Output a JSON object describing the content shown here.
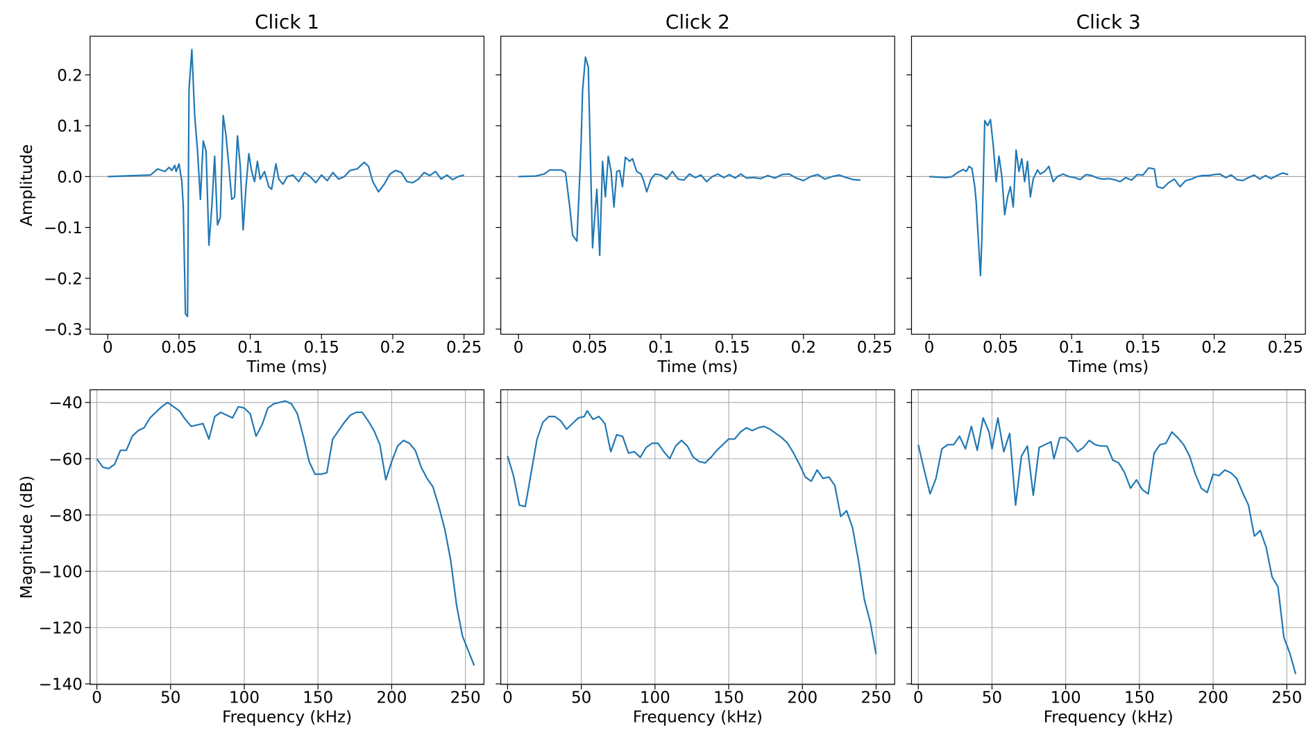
{
  "chart_data": [
    {
      "type": "line",
      "title": "Click 1",
      "xlabel": "Time (ms)",
      "ylabel": "Amplitude",
      "color": "#1f77b4",
      "grid": false,
      "hline": 0,
      "xlim": [
        -0.0124,
        0.264
      ],
      "ylim": [
        -0.31,
        0.276
      ],
      "xticks": [
        0,
        0.05,
        0.1,
        0.15,
        0.2,
        0.25
      ],
      "yticks": [
        {
          "value": -0.3,
          "label": "−0.3"
        },
        {
          "value": -0.2,
          "label": "−0.2"
        },
        {
          "value": -0.1,
          "label": "−0.1"
        },
        {
          "value": 0,
          "label": "0.0"
        },
        0.1,
        0.2
      ],
      "x": [
        0,
        0.03,
        0.035,
        0.04,
        0.043,
        0.045,
        0.047,
        0.048,
        0.05,
        0.052,
        0.053,
        0.0545,
        0.056,
        0.057,
        0.059,
        0.061,
        0.063,
        0.065,
        0.067,
        0.069,
        0.071,
        0.073,
        0.075,
        0.077,
        0.079,
        0.081,
        0.083,
        0.085,
        0.087,
        0.089,
        0.091,
        0.093,
        0.095,
        0.097,
        0.099,
        0.101,
        0.103,
        0.105,
        0.107,
        0.11,
        0.113,
        0.115,
        0.118,
        0.12,
        0.123,
        0.126,
        0.13,
        0.134,
        0.138,
        0.142,
        0.146,
        0.15,
        0.154,
        0.158,
        0.162,
        0.166,
        0.17,
        0.175,
        0.18,
        0.183,
        0.186,
        0.19,
        0.194,
        0.198,
        0.202,
        0.206,
        0.21,
        0.214,
        0.218,
        0.222,
        0.226,
        0.23,
        0.234,
        0.238,
        0.242,
        0.246,
        0.25
      ],
      "values": [
        0,
        0.003,
        0.015,
        0.01,
        0.018,
        0.012,
        0.022,
        0.01,
        0.025,
        -0.01,
        -0.06,
        -0.27,
        -0.275,
        0.17,
        0.25,
        0.12,
        0.05,
        -0.045,
        0.07,
        0.05,
        -0.135,
        -0.06,
        0.04,
        -0.095,
        -0.08,
        0.12,
        0.08,
        0.02,
        -0.045,
        -0.04,
        0.08,
        0.02,
        -0.105,
        -0.02,
        0.045,
        0.01,
        -0.01,
        0.03,
        -0.005,
        0.01,
        -0.02,
        -0.025,
        0.025,
        -0.005,
        -0.015,
        0,
        0.003,
        -0.01,
        0.008,
        0,
        -0.012,
        0.003,
        -0.008,
        0.008,
        -0.005,
        0,
        0.012,
        0.015,
        0.028,
        0.02,
        -0.01,
        -0.03,
        -0.015,
        0.005,
        0.012,
        0.008,
        -0.01,
        -0.012,
        -0.005,
        0.008,
        0.002,
        0.01,
        -0.005,
        0.003,
        -0.006,
        0,
        0.003
      ]
    },
    {
      "type": "line",
      "title": "Click 2",
      "xlabel": "Time (ms)",
      "color": "#1f77b4",
      "grid": false,
      "hline": 0,
      "xlim": [
        -0.0124,
        0.264
      ],
      "ylim": [
        -0.31,
        0.276
      ],
      "xticks": [
        0,
        0.05,
        0.1,
        0.15,
        0.2,
        0.25
      ],
      "yticks": [
        -0.3,
        -0.2,
        -0.1,
        0,
        0.1,
        0.2
      ],
      "x": [
        0,
        0.012,
        0.018,
        0.022,
        0.03,
        0.033,
        0.036,
        0.038,
        0.041,
        0.043,
        0.044,
        0.045,
        0.047,
        0.049,
        0.052,
        0.054,
        0.055,
        0.057,
        0.059,
        0.061,
        0.063,
        0.065,
        0.067,
        0.069,
        0.071,
        0.073,
        0.075,
        0.078,
        0.08,
        0.083,
        0.086,
        0.088,
        0.09,
        0.093,
        0.096,
        0.1,
        0.104,
        0.108,
        0.112,
        0.116,
        0.12,
        0.124,
        0.128,
        0.132,
        0.136,
        0.14,
        0.144,
        0.148,
        0.152,
        0.156,
        0.16,
        0.165,
        0.17,
        0.175,
        0.18,
        0.185,
        0.19,
        0.195,
        0.2,
        0.205,
        0.21,
        0.215,
        0.22,
        0.225,
        0.23,
        0.235,
        0.24
      ],
      "values": [
        0,
        0.001,
        0.005,
        0.013,
        0.013,
        0.008,
        -0.06,
        -0.115,
        -0.127,
        0,
        0.07,
        0.17,
        0.235,
        0.215,
        -0.14,
        -0.06,
        -0.025,
        -0.155,
        0.03,
        -0.04,
        0.04,
        0.01,
        -0.06,
        0.01,
        0.012,
        -0.02,
        0.038,
        0.03,
        0.035,
        0.01,
        0.005,
        -0.01,
        -0.03,
        -0.005,
        0.005,
        0.003,
        -0.005,
        0.01,
        -0.005,
        -0.007,
        0.005,
        -0.002,
        0.003,
        -0.01,
        0,
        0.005,
        -0.002,
        0.004,
        -0.003,
        0.005,
        -0.003,
        -0.002,
        -0.004,
        0.002,
        -0.003,
        0.004,
        0.005,
        -0.003,
        -0.008,
        0,
        0.004,
        -0.005,
        0,
        0.003,
        -0.002,
        -0.006,
        -0.007
      ]
    },
    {
      "type": "line",
      "title": "Click 3",
      "xlabel": "Time (ms)",
      "color": "#1f77b4",
      "grid": false,
      "hline": 0,
      "xlim": [
        -0.0124,
        0.264
      ],
      "ylim": [
        -0.31,
        0.276
      ],
      "xticks": [
        0,
        0.05,
        0.1,
        0.15,
        0.2,
        0.25
      ],
      "yticks": [
        -0.3,
        -0.2,
        -0.1,
        0,
        0.1,
        0.2
      ],
      "x": [
        0,
        0.012,
        0.016,
        0.02,
        0.024,
        0.026,
        0.028,
        0.03,
        0.032,
        0.033,
        0.034,
        0.036,
        0.037,
        0.039,
        0.041,
        0.043,
        0.045,
        0.047,
        0.049,
        0.051,
        0.053,
        0.055,
        0.057,
        0.059,
        0.061,
        0.063,
        0.065,
        0.067,
        0.069,
        0.071,
        0.073,
        0.076,
        0.078,
        0.081,
        0.084,
        0.087,
        0.09,
        0.094,
        0.098,
        0.102,
        0.106,
        0.11,
        0.114,
        0.118,
        0.122,
        0.126,
        0.13,
        0.134,
        0.138,
        0.142,
        0.146,
        0.15,
        0.154,
        0.158,
        0.16,
        0.164,
        0.168,
        0.172,
        0.176,
        0.18,
        0.184,
        0.188,
        0.192,
        0.196,
        0.2,
        0.204,
        0.208,
        0.212,
        0.216,
        0.22,
        0.224,
        0.228,
        0.232,
        0.236,
        0.24,
        0.244,
        0.248,
        0.252
      ],
      "values": [
        0,
        -0.002,
        0,
        0.008,
        0.014,
        0.01,
        0.02,
        0.016,
        -0.02,
        -0.05,
        -0.1,
        -0.195,
        -0.12,
        0.11,
        0.1,
        0.112,
        0.06,
        -0.01,
        0.04,
        0,
        -0.075,
        -0.04,
        -0.02,
        -0.06,
        0.052,
        0.01,
        0.035,
        -0.01,
        0.03,
        -0.04,
        -0.005,
        0.013,
        0.005,
        0.01,
        0.02,
        -0.01,
        0,
        0.005,
        0,
        -0.002,
        -0.006,
        0.004,
        0.002,
        -0.003,
        -0.005,
        -0.004,
        -0.006,
        -0.01,
        -0.002,
        -0.007,
        0.004,
        0.003,
        0.017,
        0.015,
        -0.02,
        -0.023,
        -0.012,
        -0.005,
        -0.02,
        -0.008,
        -0.005,
        0,
        0.002,
        0.002,
        0.004,
        0.005,
        -0.002,
        0.003,
        -0.006,
        -0.008,
        -0.002,
        0.003,
        -0.005,
        0.002,
        -0.004,
        0.002,
        0.007,
        0.004
      ]
    },
    {
      "type": "line",
      "xlabel": "Frequency (kHz)",
      "ylabel": "Magnitude (dB)",
      "color": "#1f77b4",
      "grid": true,
      "xlim": [
        -4.6,
        262.6
      ],
      "ylim": [
        -140.2,
        -35.5
      ],
      "xticks": [
        0,
        50,
        100,
        150,
        200,
        250
      ],
      "yticks": [
        {
          "value": -140,
          "label": "−140"
        },
        {
          "value": -120,
          "label": "−120"
        },
        {
          "value": -100,
          "label": "−100"
        },
        {
          "value": -80,
          "label": "−80"
        },
        {
          "value": -60,
          "label": "−60"
        },
        {
          "value": -40,
          "label": "−40"
        }
      ],
      "x": [
        0,
        4,
        8,
        12,
        16,
        20,
        24,
        28,
        32,
        36,
        40,
        44,
        48,
        52,
        56,
        60,
        64,
        68,
        72,
        76,
        80,
        84,
        88,
        92,
        96,
        100,
        104,
        108,
        112,
        116,
        120,
        124,
        128,
        132,
        136,
        140,
        144,
        148,
        152,
        156,
        160,
        164,
        168,
        172,
        176,
        180,
        184,
        188,
        192,
        196,
        200,
        204,
        208,
        212,
        216,
        220,
        224,
        228,
        232,
        236,
        240,
        244,
        248,
        256
      ],
      "values": [
        -60,
        -63,
        -63.5,
        -62,
        -57,
        -57,
        -52,
        -50,
        -49,
        -45.5,
        -43.5,
        -41.5,
        -40,
        -41.5,
        -43,
        -46,
        -48.5,
        -48,
        -47.5,
        -53,
        -45,
        -43.5,
        -44.5,
        -45.5,
        -41.5,
        -42,
        -44,
        -52,
        -48,
        -42,
        -40.5,
        -40,
        -39.5,
        -40.5,
        -44,
        -52,
        -61,
        -65.5,
        -65.5,
        -65,
        -53,
        -50,
        -47,
        -44.5,
        -43.5,
        -43.5,
        -46.5,
        -50,
        -55,
        -67.5,
        -61,
        -55.5,
        -53.5,
        -54.5,
        -57,
        -63,
        -67,
        -70,
        -77,
        -85,
        -96,
        -112,
        -123,
        -133.5
      ]
    },
    {
      "type": "line",
      "xlabel": "Frequency (kHz)",
      "color": "#1f77b4",
      "grid": true,
      "xlim": [
        -4.6,
        262.6
      ],
      "ylim": [
        -140.2,
        -35.5
      ],
      "xticks": [
        0,
        50,
        100,
        150,
        200,
        250
      ],
      "yticks": [
        -140,
        -120,
        -100,
        -80,
        -60,
        -40
      ],
      "x": [
        0,
        4,
        8,
        12,
        16,
        20,
        24,
        28,
        32,
        36,
        40,
        44,
        48,
        52,
        54,
        58,
        62,
        66,
        70,
        74,
        78,
        82,
        86,
        90,
        94,
        98,
        102,
        106,
        110,
        114,
        118,
        122,
        126,
        130,
        134,
        138,
        142,
        146,
        150,
        154,
        158,
        162,
        166,
        170,
        174,
        178,
        182,
        186,
        190,
        194,
        198,
        202,
        206,
        210,
        214,
        218,
        222,
        226,
        230,
        234,
        238,
        242,
        246,
        250
      ],
      "values": [
        -59,
        -66,
        -76.5,
        -77,
        -65,
        -53,
        -47,
        -45,
        -45,
        -46.5,
        -49.5,
        -47.5,
        -45.5,
        -45,
        -43,
        -46,
        -45,
        -47.5,
        -57.5,
        -51.5,
        -52,
        -58,
        -57.5,
        -59.5,
        -56,
        -54.5,
        -54.5,
        -57.5,
        -60,
        -55.5,
        -53.5,
        -55.5,
        -59.5,
        -61,
        -61.5,
        -59.5,
        -57,
        -55,
        -53,
        -53,
        -50.5,
        -49,
        -50,
        -49,
        -48.5,
        -49.5,
        -51,
        -52.5,
        -54.5,
        -58,
        -62,
        -66.5,
        -68,
        -64,
        -67,
        -66.5,
        -69.5,
        -80.5,
        -78.5,
        -84.5,
        -96,
        -110,
        -118,
        -129.5
      ]
    },
    {
      "type": "line",
      "xlabel": "Frequency (kHz)",
      "color": "#1f77b4",
      "grid": true,
      "xlim": [
        -4.6,
        262.6
      ],
      "ylim": [
        -140.2,
        -35.5
      ],
      "xticks": [
        0,
        50,
        100,
        150,
        200,
        250
      ],
      "yticks": [
        -140,
        -120,
        -100,
        -80,
        -60,
        -40
      ],
      "x": [
        0,
        4,
        8,
        12,
        16,
        20,
        24,
        28,
        32,
        36,
        40,
        44,
        48,
        50,
        54,
        58,
        62,
        66,
        70,
        74,
        78,
        82,
        86,
        90,
        92,
        96,
        100,
        104,
        108,
        112,
        116,
        120,
        124,
        128,
        132,
        136,
        140,
        144,
        148,
        152,
        156,
        160,
        164,
        168,
        172,
        176,
        180,
        184,
        188,
        192,
        196,
        200,
        204,
        208,
        212,
        216,
        220,
        224,
        228,
        232,
        236,
        240,
        244,
        248,
        252,
        256
      ],
      "values": [
        -55,
        -64,
        -72.5,
        -67,
        -56.5,
        -55,
        -55,
        -52,
        -56.5,
        -48.5,
        -57,
        -45.5,
        -50.5,
        -56.5,
        -45.5,
        -57.5,
        -51,
        -76.5,
        -59,
        -55.5,
        -73,
        -56,
        -55,
        -54,
        -60,
        -52.5,
        -52.5,
        -54.5,
        -57.5,
        -56,
        -53.5,
        -55,
        -55.5,
        -55.5,
        -60.5,
        -61.5,
        -65,
        -70.5,
        -67.5,
        -71,
        -72.5,
        -58,
        -55,
        -54.5,
        -50.5,
        -52.5,
        -55,
        -59,
        -65.5,
        -70.5,
        -72,
        -65.5,
        -66,
        -64,
        -65,
        -67,
        -72,
        -76.5,
        -87.5,
        -85.5,
        -91.5,
        -102,
        -105.5,
        -123.5,
        -129,
        -136.5
      ]
    }
  ]
}
